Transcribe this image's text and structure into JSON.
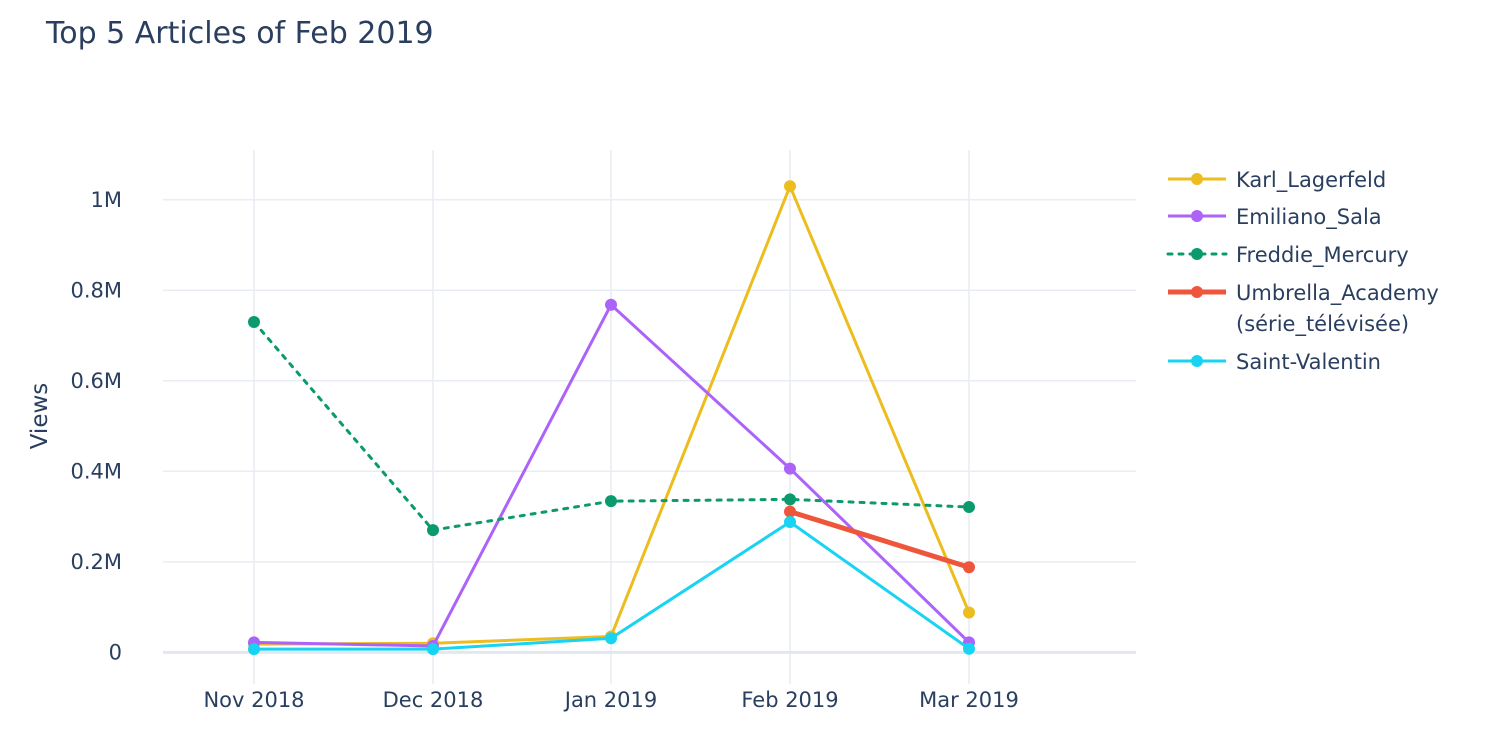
{
  "chart_data": {
    "type": "line",
    "title": "Top 5 Articles of Feb 2019",
    "xlabel": "",
    "ylabel": "Views",
    "categories": [
      "Nov 2018",
      "Dec 2018",
      "Jan 2019",
      "Feb 2019",
      "Mar 2019"
    ],
    "ylim": [
      -70000,
      1110000
    ],
    "yticks": [
      {
        "value": 0,
        "label": "0"
      },
      {
        "value": 200000,
        "label": "0.2M"
      },
      {
        "value": 400000,
        "label": "0.4M"
      },
      {
        "value": 600000,
        "label": "0.6M"
      },
      {
        "value": 800000,
        "label": "0.8M"
      },
      {
        "value": 1000000,
        "label": "1M"
      }
    ],
    "grid": true,
    "legend_position": "right",
    "series": [
      {
        "name": "Karl_Lagerfeld",
        "color": "#ecbd1f",
        "dash": "solid",
        "width": 3,
        "values": [
          18000,
          20000,
          35000,
          1030000,
          88000
        ]
      },
      {
        "name": "Emiliano_Sala",
        "color": "#ab63fa",
        "dash": "solid",
        "width": 3,
        "values": [
          22000,
          14000,
          768000,
          406000,
          22000
        ]
      },
      {
        "name": "Freddie_Mercury",
        "color": "#0b9a6d",
        "dash": "dot",
        "width": 3,
        "values": [
          730000,
          270000,
          334000,
          338000,
          321000
        ]
      },
      {
        "name": "Umbrella_Academy (série_télévisée)",
        "name_lines": [
          "Umbrella_Academy",
          "(série_télévisée)"
        ],
        "color": "#ef553b",
        "dash": "solid",
        "width": 5,
        "values": [
          null,
          null,
          null,
          311000,
          188000
        ]
      },
      {
        "name": "Saint-Valentin",
        "color": "#19d3f3",
        "dash": "solid",
        "width": 3,
        "values": [
          7000,
          7000,
          31000,
          288000,
          8000
        ]
      }
    ]
  }
}
